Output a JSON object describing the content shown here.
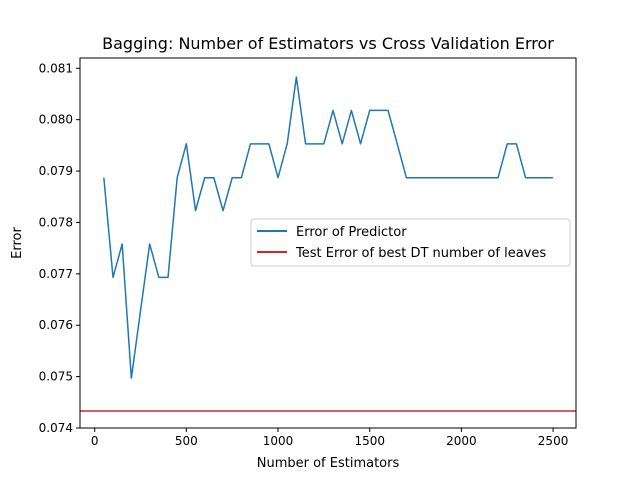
{
  "chart_data": {
    "type": "line",
    "title": "Bagging: Number of Estimators vs Cross Validation Error",
    "xlabel": "Number of Estimators",
    "ylabel": "Error",
    "xlim": [
      -80,
      2625
    ],
    "ylim": [
      0.074,
      0.0812
    ],
    "xticks": [
      0,
      500,
      1000,
      1500,
      2000,
      2500
    ],
    "xtick_labels": [
      "0",
      "500",
      "1000",
      "1500",
      "2000",
      "2500"
    ],
    "yticks": [
      0.074,
      0.075,
      0.076,
      0.077,
      0.078,
      0.079,
      0.08,
      0.081
    ],
    "ytick_labels": [
      "0.074",
      "0.075",
      "0.076",
      "0.077",
      "0.078",
      "0.079",
      "0.080",
      "0.081"
    ],
    "grid": false,
    "legend_position": "center-right",
    "series": [
      {
        "name": "Error of Predictor",
        "color": "#1f77b4",
        "x": [
          50,
          100,
          150,
          200,
          250,
          300,
          350,
          400,
          450,
          500,
          550,
          600,
          650,
          700,
          750,
          800,
          850,
          900,
          950,
          1000,
          1050,
          1100,
          1150,
          1200,
          1250,
          1300,
          1350,
          1400,
          1450,
          1500,
          1550,
          1600,
          1650,
          1700,
          1750,
          1800,
          1850,
          1900,
          1950,
          2000,
          2050,
          2100,
          2150,
          2200,
          2250,
          2300,
          2350,
          2400,
          2450,
          2500
        ],
        "values": [
          0.07887,
          0.07693,
          0.07758,
          0.07497,
          0.07628,
          0.07758,
          0.07693,
          0.07693,
          0.07887,
          0.07953,
          0.07823,
          0.07887,
          0.07887,
          0.07823,
          0.07887,
          0.07887,
          0.07953,
          0.07953,
          0.07953,
          0.07887,
          0.07953,
          0.08083,
          0.07953,
          0.07953,
          0.07953,
          0.08018,
          0.07953,
          0.08018,
          0.07953,
          0.08018,
          0.08018,
          0.08018,
          0.07953,
          0.07887,
          0.07887,
          0.07887,
          0.07887,
          0.07887,
          0.07887,
          0.07887,
          0.07887,
          0.07887,
          0.07887,
          0.07887,
          0.07953,
          0.07953,
          0.07887,
          0.07887,
          0.07887,
          0.07887
        ]
      },
      {
        "name": "Test Error of best DT number of leaves",
        "color": "#d62728",
        "type": "hline",
        "value": 0.07433
      }
    ]
  }
}
